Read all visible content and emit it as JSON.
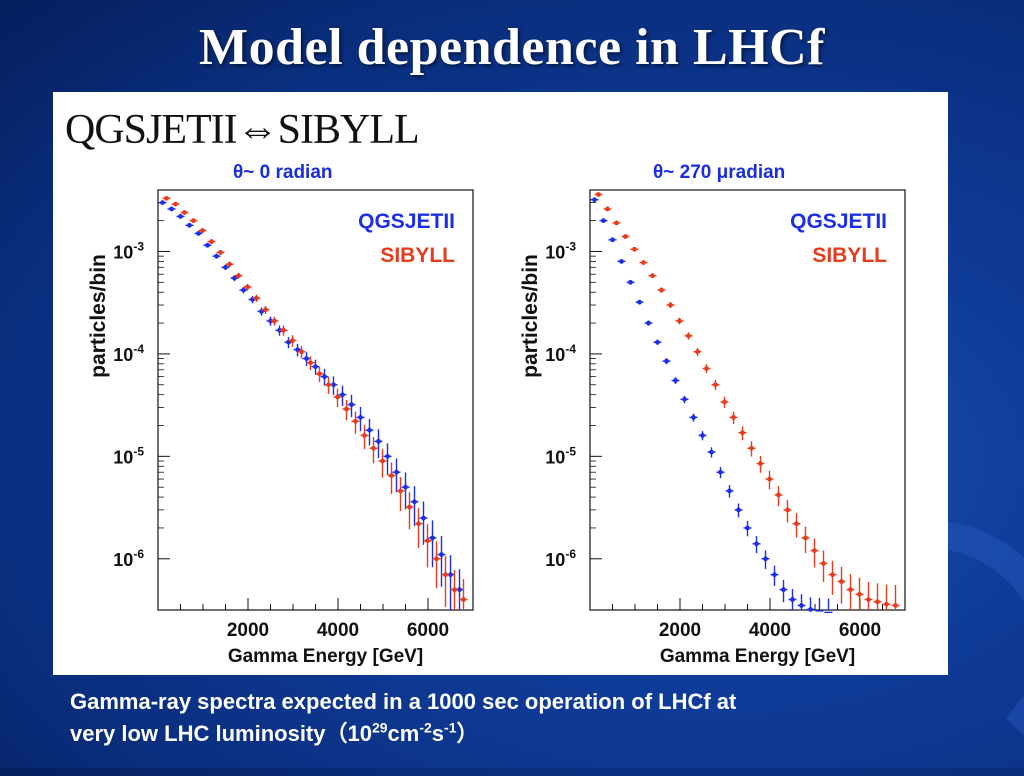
{
  "slide": {
    "title": "Model dependence in LHCf",
    "heading": "QGSJETII⇔SIBYLL",
    "caption_line1": "Gamma-ray spectra expected in a 1000 sec operation of LHCf at",
    "caption_line2_prefix": "very low LHC luminosity（10",
    "caption_exp1": "29",
    "caption_mid1": "cm",
    "caption_exp2": "-2",
    "caption_mid2": "s",
    "caption_exp3": "-1",
    "caption_suffix": "）"
  },
  "colors": {
    "qgsjet": "#1d2fe6",
    "sibyll": "#e63c1e",
    "sibyll_alt": "#6f8f2e"
  },
  "chart_data": [
    {
      "type": "scatter",
      "title": "θ~ 0 radian",
      "xlabel": "Gamma Energy [GeV]",
      "ylabel": "particles/bin",
      "xlim": [
        0,
        7000
      ],
      "ylim_log10": [
        -6.5,
        -2.4
      ],
      "x_ticks": [
        2000,
        4000,
        6000
      ],
      "y_ticks": [
        {
          "label": "10",
          "exp": "-3",
          "log": -3
        },
        {
          "label": "10",
          "exp": "-4",
          "log": -4
        },
        {
          "label": "10",
          "exp": "-5",
          "log": -5
        },
        {
          "label": "10",
          "exp": "-6",
          "log": -6
        }
      ],
      "legend": {
        "position": "top-right"
      },
      "series": [
        {
          "name": "QGSJETII",
          "color": "#1d2fe6",
          "x": [
            100,
            300,
            500,
            700,
            900,
            1100,
            1300,
            1500,
            1700,
            1900,
            2100,
            2300,
            2500,
            2700,
            2900,
            3100,
            3300,
            3500,
            3700,
            3900,
            4100,
            4300,
            4500,
            4700,
            4900,
            5100,
            5300,
            5500,
            5700,
            5900,
            6100,
            6300,
            6500,
            6700
          ],
          "y": [
            0.003,
            0.0026,
            0.0022,
            0.0018,
            0.0015,
            0.00115,
            0.0009,
            0.0007,
            0.00055,
            0.00042,
            0.00034,
            0.00026,
            0.00021,
            0.00017,
            0.00013,
            0.00011,
            9e-05,
            7.5e-05,
            6e-05,
            5e-05,
            4e-05,
            3.2e-05,
            2.4e-05,
            1.8e-05,
            1.4e-05,
            1e-05,
            7e-06,
            5e-06,
            3.6e-06,
            2.5e-06,
            1.6e-06,
            1.1e-06,
            7e-07,
            5e-07
          ]
        },
        {
          "name": "SIBYLL",
          "color": "#e63c1e",
          "x": [
            100,
            300,
            500,
            700,
            900,
            1100,
            1300,
            1500,
            1700,
            1900,
            2100,
            2300,
            2500,
            2700,
            2900,
            3100,
            3300,
            3500,
            3700,
            3900,
            4100,
            4300,
            4500,
            4700,
            4900,
            5100,
            5300,
            5500,
            5700,
            5900,
            6100,
            6300,
            6500,
            6700
          ],
          "y": [
            0.0033,
            0.0029,
            0.0024,
            0.002,
            0.0016,
            0.00125,
            0.00098,
            0.00075,
            0.00058,
            0.00045,
            0.00035,
            0.00027,
            0.00021,
            0.00017,
            0.000135,
            0.000105,
            8.2e-05,
            6.4e-05,
            5e-05,
            3.8e-05,
            2.9e-05,
            2.2e-05,
            1.6e-05,
            1.2e-05,
            9e-06,
            6.5e-06,
            4.6e-06,
            3.2e-06,
            2.2e-06,
            1.5e-06,
            1e-06,
            7e-07,
            5e-07,
            4e-07
          ]
        }
      ]
    },
    {
      "type": "scatter",
      "title": "θ~ 270 μradian",
      "xlabel": "Gamma Energy [GeV]",
      "ylabel": "particles/bin",
      "xlim": [
        0,
        7000
      ],
      "ylim_log10": [
        -6.5,
        -2.4
      ],
      "x_ticks": [
        2000,
        4000,
        6000
      ],
      "y_ticks": [
        {
          "label": "10",
          "exp": "-3",
          "log": -3
        },
        {
          "label": "10",
          "exp": "-4",
          "log": -4
        },
        {
          "label": "10",
          "exp": "-5",
          "log": -5
        },
        {
          "label": "10",
          "exp": "-6",
          "log": -6
        }
      ],
      "legend": {
        "position": "top-right"
      },
      "series": [
        {
          "name": "QGSJETII",
          "color": "#1d2fe6",
          "x": [
            100,
            300,
            500,
            700,
            900,
            1100,
            1300,
            1500,
            1700,
            1900,
            2100,
            2300,
            2500,
            2700,
            2900,
            3100,
            3300,
            3500,
            3700,
            3900,
            4100,
            4300,
            4500,
            4700,
            4900,
            5100,
            5300
          ],
          "y": [
            0.0032,
            0.002,
            0.0013,
            0.0008,
            0.0005,
            0.00032,
            0.0002,
            0.00013,
            8.5e-05,
            5.5e-05,
            3.6e-05,
            2.4e-05,
            1.6e-05,
            1.1e-05,
            7e-06,
            4.6e-06,
            3e-06,
            2e-06,
            1.4e-06,
            1e-06,
            7e-07,
            5e-07,
            4e-07,
            3.5e-07,
            3.2e-07,
            3.1e-07,
            3e-07
          ]
        },
        {
          "name": "SIBYLL",
          "color": "#e63c1e",
          "x": [
            100,
            300,
            500,
            700,
            900,
            1100,
            1300,
            1500,
            1700,
            1900,
            2100,
            2300,
            2500,
            2700,
            2900,
            3100,
            3300,
            3500,
            3700,
            3900,
            4100,
            4300,
            4500,
            4700,
            4900,
            5100,
            5300,
            5500,
            5700,
            5900,
            6100,
            6300,
            6500,
            6700
          ],
          "y": [
            0.0036,
            0.0026,
            0.0019,
            0.0014,
            0.00105,
            0.00078,
            0.00058,
            0.00042,
            0.0003,
            0.00021,
            0.00015,
            0.000105,
            7.2e-05,
            5e-05,
            3.4e-05,
            2.4e-05,
            1.7e-05,
            1.2e-05,
            8.5e-06,
            6e-06,
            4.2e-06,
            3e-06,
            2.2e-06,
            1.6e-06,
            1.2e-06,
            9e-07,
            7e-07,
            6e-07,
            5e-07,
            4.5e-07,
            4e-07,
            3.8e-07,
            3.6e-07,
            3.5e-07
          ]
        }
      ]
    }
  ]
}
